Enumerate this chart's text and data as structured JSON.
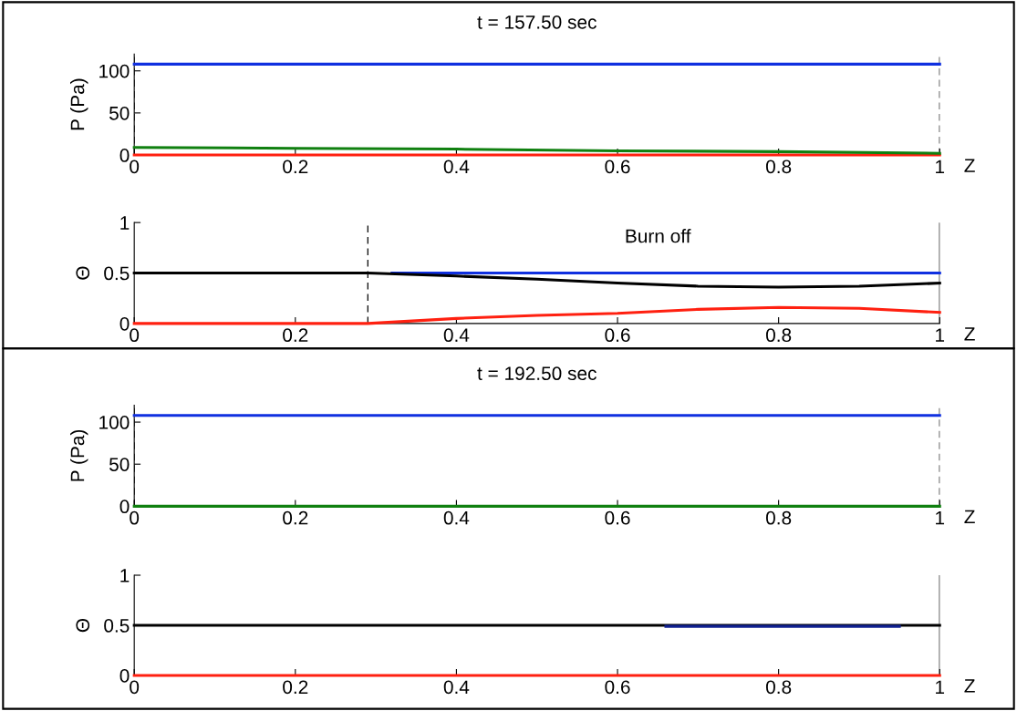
{
  "chart_data": [
    {
      "type": "line",
      "title": "t = 157.50 sec",
      "xlabel": "Z",
      "ylabel": "P (Pa)",
      "xlim": [
        0,
        1
      ],
      "ylim": [
        0,
        120
      ],
      "xticks": [
        0,
        0.2,
        0.4,
        0.6,
        0.8,
        1
      ],
      "yticks": [
        0,
        50,
        100
      ],
      "grid": false,
      "legend": false,
      "series": [
        {
          "color": "#1030e0",
          "x": [
            0,
            1
          ],
          "values": [
            108,
            108
          ]
        },
        {
          "color": "#ff2010",
          "x": [
            0,
            1
          ],
          "values": [
            0,
            0
          ]
        },
        {
          "color": "#108010",
          "x": [
            0,
            0.2,
            0.4,
            0.6,
            0.8,
            1
          ],
          "values": [
            9,
            8,
            7,
            5,
            4,
            2
          ]
        }
      ],
      "ref_lines": [
        {
          "axis": "x",
          "value": 0,
          "line_style": "dashed",
          "color": "#000000"
        },
        {
          "axis": "x",
          "value": 1,
          "line_style": "dashed",
          "color": "#000000"
        }
      ]
    },
    {
      "type": "line",
      "xlabel": "Z",
      "ylabel": "Θ",
      "xlim": [
        0,
        1
      ],
      "ylim": [
        0,
        1
      ],
      "xticks": [
        0,
        0.2,
        0.4,
        0.6,
        0.8,
        1
      ],
      "yticks": [
        0,
        0.5,
        1
      ],
      "grid": false,
      "legend": false,
      "annotations": [
        "Burn off"
      ],
      "series": [
        {
          "color": "#1030e0",
          "x": [
            0.32,
            1
          ],
          "values": [
            0.5,
            0.5
          ]
        },
        {
          "color": "#000000",
          "x": [
            0,
            0.29,
            0.4,
            0.5,
            0.6,
            0.7,
            0.8,
            0.9,
            1
          ],
          "values": [
            0.5,
            0.5,
            0.47,
            0.44,
            0.4,
            0.37,
            0.36,
            0.37,
            0.4
          ]
        },
        {
          "color": "#ff2010",
          "x": [
            0,
            0.29,
            0.4,
            0.5,
            0.6,
            0.7,
            0.8,
            0.9,
            1
          ],
          "values": [
            0,
            0,
            0.05,
            0.08,
            0.1,
            0.14,
            0.16,
            0.15,
            0.11
          ]
        }
      ],
      "ref_lines": [
        {
          "axis": "x",
          "value": 0.29,
          "line_style": "dashed",
          "color": "#000000"
        },
        {
          "axis": "x",
          "value": 1,
          "line_style": "solid",
          "color": "#000000"
        }
      ]
    },
    {
      "type": "line",
      "title": "t = 192.50 sec",
      "xlabel": "Z",
      "ylabel": "P (Pa)",
      "xlim": [
        0,
        1
      ],
      "ylim": [
        0,
        120
      ],
      "xticks": [
        0,
        0.2,
        0.4,
        0.6,
        0.8,
        1
      ],
      "yticks": [
        0,
        50,
        100
      ],
      "grid": false,
      "legend": false,
      "series": [
        {
          "color": "#1030e0",
          "x": [
            0,
            1
          ],
          "values": [
            108,
            108
          ]
        },
        {
          "color": "#108010",
          "x": [
            0,
            1
          ],
          "values": [
            0,
            0
          ]
        }
      ],
      "ref_lines": [
        {
          "axis": "x",
          "value": 0,
          "line_style": "dashed",
          "color": "#000000"
        },
        {
          "axis": "x",
          "value": 1,
          "line_style": "dashed",
          "color": "#000000"
        }
      ]
    },
    {
      "type": "line",
      "xlabel": "Z",
      "ylabel": "Θ",
      "xlim": [
        0,
        1
      ],
      "ylim": [
        0,
        1
      ],
      "xticks": [
        0,
        0.2,
        0.4,
        0.6,
        0.8,
        1
      ],
      "yticks": [
        0,
        0.5,
        1
      ],
      "grid": false,
      "legend": false,
      "series": [
        {
          "color": "#000000",
          "x": [
            0,
            1
          ],
          "values": [
            0.5,
            0.5
          ]
        },
        {
          "color": "#102090",
          "x": [
            0.66,
            0.95
          ],
          "values": [
            0.49,
            0.49
          ]
        },
        {
          "color": "#ff2010",
          "x": [
            0,
            1
          ],
          "values": [
            0,
            0
          ]
        }
      ],
      "ref_lines": [
        {
          "axis": "x",
          "value": 1,
          "line_style": "solid",
          "color": "#000000"
        }
      ]
    }
  ]
}
